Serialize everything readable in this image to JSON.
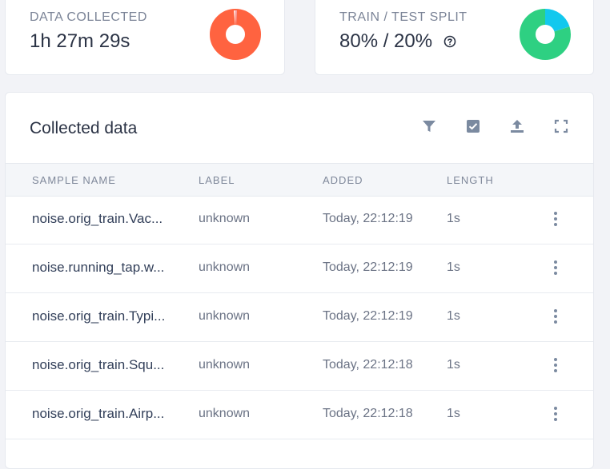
{
  "stats": {
    "data_collected": {
      "label": "DATA COLLECTED",
      "value": "1h 27m 29s",
      "chart_color": "#ff6340",
      "accent_color": "#f7a4a8"
    },
    "train_test_split": {
      "label": "TRAIN / TEST SPLIT",
      "value": "80% / 20%",
      "train_color": "#2ed082",
      "test_color": "#12c8ee",
      "train_fraction": 0.8,
      "test_fraction": 0.2
    }
  },
  "table": {
    "title": "Collected data",
    "toolbar": {
      "icons": [
        "filter-icon",
        "select-checkbox-icon",
        "upload-icon",
        "fullscreen-icon"
      ]
    },
    "columns": [
      "SAMPLE NAME",
      "LABEL",
      "ADDED",
      "LENGTH"
    ],
    "rows": [
      {
        "name": "noise.orig_train.Vac...",
        "label": "unknown",
        "added": "Today, 22:12:19",
        "length": "1s"
      },
      {
        "name": "noise.running_tap.w...",
        "label": "unknown",
        "added": "Today, 22:12:19",
        "length": "1s"
      },
      {
        "name": "noise.orig_train.Typi...",
        "label": "unknown",
        "added": "Today, 22:12:19",
        "length": "1s"
      },
      {
        "name": "noise.orig_train.Squ...",
        "label": "unknown",
        "added": "Today, 22:12:18",
        "length": "1s"
      },
      {
        "name": "noise.orig_train.Airp...",
        "label": "unknown",
        "added": "Today, 22:12:18",
        "length": "1s"
      }
    ]
  }
}
